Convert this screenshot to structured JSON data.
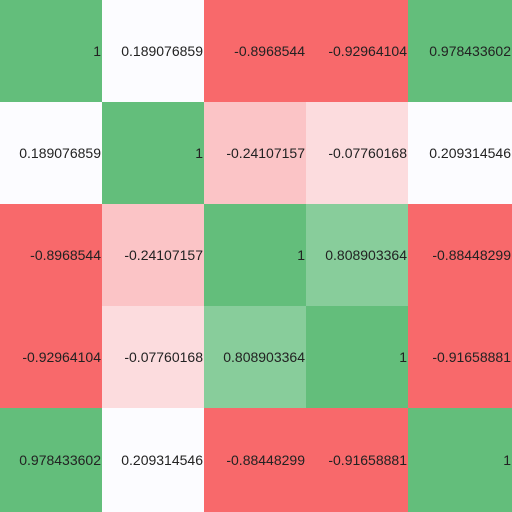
{
  "table": {
    "rows": [
      [
        {
          "text": "1",
          "color": "#63be7b"
        },
        {
          "text": "0.189076859",
          "color": "#fcfcff"
        },
        {
          "text": "-0.8968544",
          "color": "#f8696b"
        },
        {
          "text": "-0.92964104",
          "color": "#f8696b"
        },
        {
          "text": "0.978433602",
          "color": "#63be7b"
        }
      ],
      [
        {
          "text": "0.189076859",
          "color": "#fcfcff"
        },
        {
          "text": "1",
          "color": "#63be7b"
        },
        {
          "text": "-0.24107157",
          "color": "#fbc4c6"
        },
        {
          "text": "-0.07760168",
          "color": "#fcdcde"
        },
        {
          "text": "0.209314546",
          "color": "#fcfcff"
        }
      ],
      [
        {
          "text": "-0.8968544",
          "color": "#f8696b"
        },
        {
          "text": "-0.24107157",
          "color": "#fbc4c6"
        },
        {
          "text": "1",
          "color": "#63be7b"
        },
        {
          "text": "0.808903364",
          "color": "#88cd9b"
        },
        {
          "text": "-0.88448299",
          "color": "#f8696b"
        }
      ],
      [
        {
          "text": "-0.92964104",
          "color": "#f8696b"
        },
        {
          "text": "-0.07760168",
          "color": "#fcdcde"
        },
        {
          "text": "0.808903364",
          "color": "#88cd9b"
        },
        {
          "text": "1",
          "color": "#63be7b"
        },
        {
          "text": "-0.91658881",
          "color": "#f8696b"
        }
      ],
      [
        {
          "text": "0.978433602",
          "color": "#63be7b"
        },
        {
          "text": "0.209314546",
          "color": "#fcfcff"
        },
        {
          "text": "-0.88448299",
          "color": "#f8696b"
        },
        {
          "text": "-0.91658881",
          "color": "#f8696b"
        },
        {
          "text": "1",
          "color": "#63be7b"
        }
      ]
    ]
  }
}
